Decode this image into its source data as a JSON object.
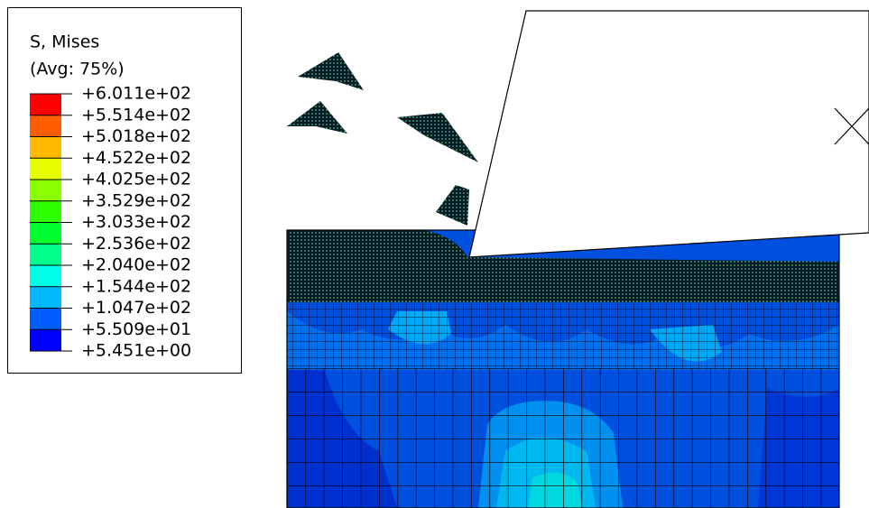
{
  "legend": {
    "title": "S, Mises",
    "subtitle": "(Avg: 75%)",
    "labels": [
      "+6.011e+02",
      "+5.514e+02",
      "+5.018e+02",
      "+4.522e+02",
      "+4.025e+02",
      "+3.529e+02",
      "+3.033e+02",
      "+2.536e+02",
      "+2.040e+02",
      "+1.544e+02",
      "+1.047e+02",
      "+5.509e+01",
      "+5.451e+00"
    ],
    "colors": [
      "#ff0000",
      "#ff5d00",
      "#ffb900",
      "#e8ff00",
      "#8bff00",
      "#2eff00",
      "#00ff2e",
      "#00ff8b",
      "#00ffe8",
      "#00b9ff",
      "#005dff",
      "#0000ff"
    ]
  }
}
